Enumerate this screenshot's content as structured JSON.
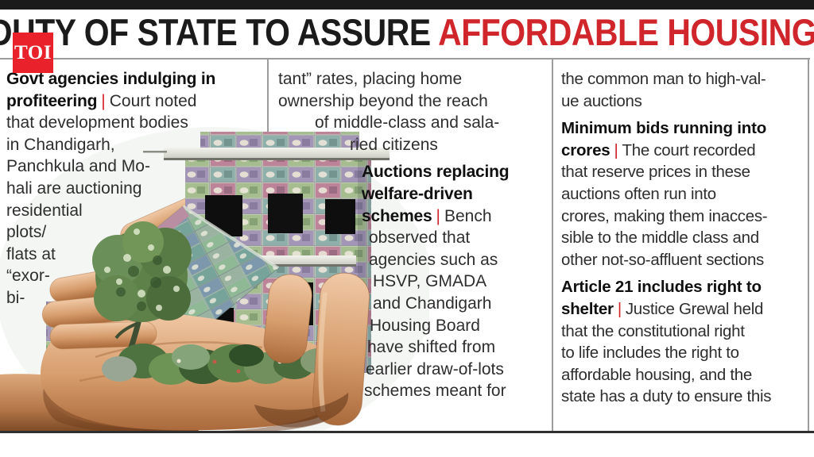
{
  "masthead": {
    "logo_text": "TOI"
  },
  "headline": {
    "prefix": "DUTY OF STATE TO ASSURE ",
    "highlight": "AFFORDABLE HOUSING'"
  },
  "colors": {
    "accent_red": "#d0262b",
    "logo_red": "#e8212b",
    "headline_black": "#1b1b1b"
  },
  "photo": {
    "description": "hand holding a model house built of Indian currency notes with a small tree and bushes"
  },
  "columns": [
    {
      "lines": [
        {
          "b": "Govt agencies indulging in"
        },
        {
          "b": "profiteering",
          "pipe": true,
          "t": "Court noted"
        },
        {
          "t": "that development bodies"
        },
        {
          "t": "in Chandigarh,"
        },
        {
          "t": "Panchkula and Mo-"
        },
        {
          "t": "hali are auctioning"
        },
        {
          "t": "residential"
        },
        {
          "t": "plots/"
        },
        {
          "t": "flats at"
        },
        {
          "t": "“exor-"
        },
        {
          "t": "bi-"
        }
      ]
    },
    {
      "lines": [
        {
          "t": "tant” rates, placing home"
        },
        {
          "t": "ownership beyond the reach"
        },
        {
          "t": "of middle-class and sala-",
          "in": 46
        },
        {
          "t": "ried citizens",
          "in": 90
        },
        {
          "b": "Auctions replacing",
          "in": 105,
          "sp": 7
        },
        {
          "b": "welfare-driven",
          "in": 105
        },
        {
          "b": "schemes",
          "pipe": true,
          "t": "Bench",
          "in": 105
        },
        {
          "t": "observed that",
          "in": 114
        },
        {
          "t": "agencies such as",
          "in": 114
        },
        {
          "t": "HSVP, GMADA",
          "in": 119
        },
        {
          "t": "and Chandigarh",
          "in": 119
        },
        {
          "t": "Housing Board",
          "in": 115
        },
        {
          "t": "have shifted from",
          "in": 112
        },
        {
          "t": "earlier draw-of-lots",
          "in": 110
        },
        {
          "t": "schemes meant for",
          "in": 108
        }
      ]
    },
    {
      "lines": [
        {
          "t": "the common man to high-val-"
        },
        {
          "t": "ue auctions"
        },
        {
          "b": "Minimum bids running into",
          "sp": 7
        },
        {
          "b": "crores",
          "pipe": true,
          "t": "The court recorded"
        },
        {
          "t": "that reserve prices in these"
        },
        {
          "t": "auctions often run into"
        },
        {
          "t": "crores, making them inacces-"
        },
        {
          "t": "sible to the middle class and"
        },
        {
          "t": "other not-so-affluent sections"
        },
        {
          "b": "Article 21 includes right to",
          "sp": 7
        },
        {
          "b": "shelter",
          "pipe": true,
          "t": "Justice Grewal held"
        },
        {
          "t": "that the constitutional right"
        },
        {
          "t": "to life includes the right to"
        },
        {
          "t": "affordable housing, and the"
        },
        {
          "t": "state has a duty to ensure this"
        }
      ]
    }
  ]
}
